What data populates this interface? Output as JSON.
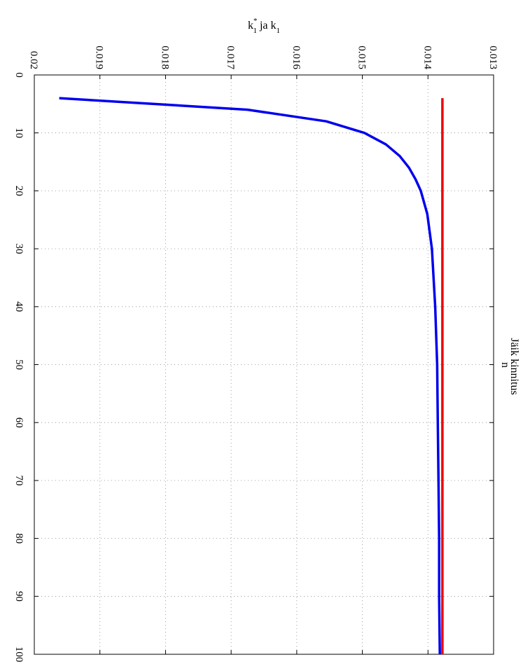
{
  "chart_data": {
    "type": "line",
    "title": "Jäik kinnitus",
    "xlabel": "n",
    "ylabel": {
      "base": "k",
      "sub1": "1",
      "sup": "*",
      "mid": " ja k",
      "sub2": "1"
    },
    "xlim": [
      0,
      100
    ],
    "ylim": [
      0.013,
      0.02
    ],
    "x_ticks": [
      0,
      10,
      20,
      30,
      40,
      50,
      60,
      70,
      80,
      90,
      100
    ],
    "y_ticks": [
      "0.013",
      "0.014",
      "0.015",
      "0.016",
      "0.017",
      "0.018",
      "0.019",
      "0.02"
    ],
    "grid": true,
    "series": [
      {
        "color": "#0000ee",
        "x": [
          4,
          6,
          8,
          10,
          12,
          14,
          16,
          18,
          20,
          24,
          30,
          40,
          50,
          60,
          70,
          80,
          90,
          100
        ],
        "y": [
          0.01962,
          0.01675,
          0.01555,
          0.01497,
          0.01464,
          0.01443,
          0.01429,
          0.01419,
          0.01411,
          0.01401,
          0.01394,
          0.01389,
          0.01386,
          0.01385,
          0.01384,
          0.01383,
          0.01383,
          0.01382
        ]
      },
      {
        "color": "#ee0000",
        "x": [
          4,
          100
        ],
        "y": [
          0.01378,
          0.01378
        ]
      }
    ]
  }
}
